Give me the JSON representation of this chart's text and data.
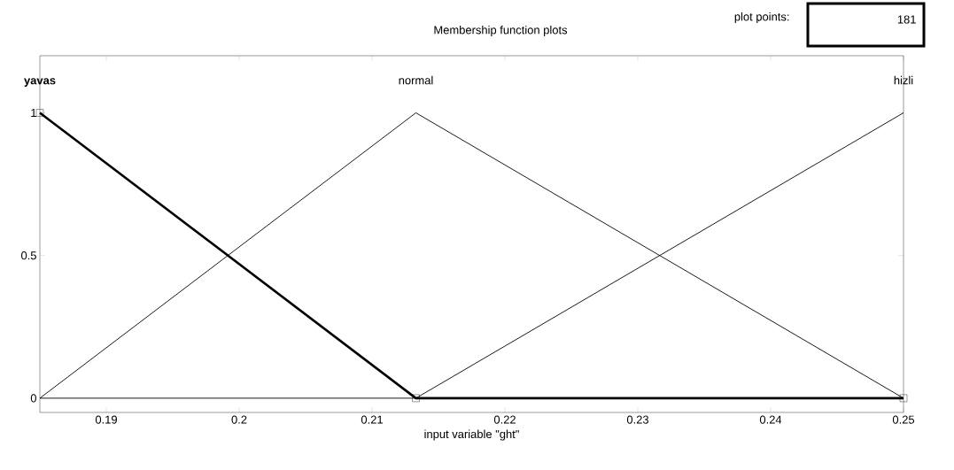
{
  "chart_data": {
    "type": "line",
    "title": "Membership function plots",
    "xlabel": "input variable \"ght\"",
    "series": [
      {
        "name": "yavas",
        "color": "#000000",
        "x": [
          0.185,
          0.2133,
          0.25
        ],
        "values": [
          1,
          0,
          0
        ],
        "marker": "square"
      },
      {
        "name": "normal",
        "color": "#000000",
        "x": [
          0.185,
          0.2133,
          0.25
        ],
        "values": [
          0,
          1,
          0
        ]
      },
      {
        "name": "hizli",
        "color": "#000000",
        "x": [
          0.185,
          0.2133,
          0.25
        ],
        "values": [
          0,
          0,
          1
        ]
      }
    ],
    "xlim": [
      0.185,
      0.25
    ],
    "xticks": [
      0.19,
      0.2,
      0.21,
      0.22,
      0.23,
      0.24,
      0.25
    ],
    "ylim": [
      -0.05,
      1.2
    ],
    "yticks": [
      0,
      0.5,
      1
    ],
    "grid": false,
    "legend": false,
    "annotations": [
      "plot points:",
      "181"
    ]
  }
}
